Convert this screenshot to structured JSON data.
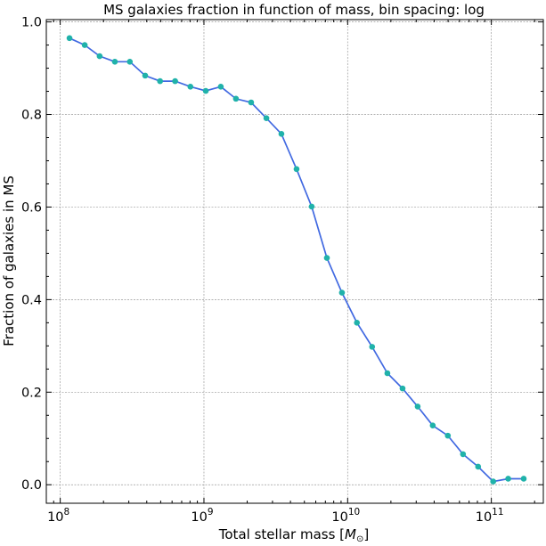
{
  "chart_data": {
    "type": "line",
    "title": "MS galaxies fraction in function of mass, bin spacing: log",
    "xlabel": "Total stellar mass [",
    "xlabel_math": "M",
    "xlabel_sub": "⊙",
    "xlabel_close": "]",
    "ylabel": "Fraction of galaxies in MS",
    "xscale": "log",
    "xlim": [
      80000000.0,
      230000000000.0
    ],
    "ylim": [
      -0.04,
      1.005
    ],
    "grid": true,
    "xticks": [
      {
        "value": 100000000.0,
        "base": "10",
        "exp": "8"
      },
      {
        "value": 1000000000.0,
        "base": "10",
        "exp": "9"
      },
      {
        "value": 10000000000.0,
        "base": "10",
        "exp": "10"
      },
      {
        "value": 100000000000.0,
        "base": "10",
        "exp": "11"
      }
    ],
    "yticks": [
      {
        "value": 0.0,
        "label": "0.0"
      },
      {
        "value": 0.2,
        "label": "0.2"
      },
      {
        "value": 0.4,
        "label": "0.4"
      },
      {
        "value": 0.6,
        "label": "0.6"
      },
      {
        "value": 0.8,
        "label": "0.8"
      },
      {
        "value": 1.0,
        "label": "1.0"
      }
    ],
    "series": [
      {
        "line_color": "#4169e1",
        "marker_color": "#20b2aa",
        "x": [
          116000000.0,
          148000000.0,
          188000000.0,
          240000000.0,
          305000000.0,
          390000000.0,
          495000000.0,
          630000000.0,
          805000000.0,
          1030000000.0,
          1310000000.0,
          1670000000.0,
          2130000000.0,
          2720000000.0,
          3460000000.0,
          4410000000.0,
          5620000000.0,
          7170000000.0,
          9130000000.0,
          11600000000.0,
          14800000000.0,
          18900000000.0,
          24100000000.0,
          30700000000.0,
          39100000000.0,
          49800000000.0,
          63500000000.0,
          80900000000.0,
          103000000000.0,
          131000000000.0,
          168000000000.0
        ],
        "y": [
          0.965,
          0.95,
          0.926,
          0.914,
          0.914,
          0.884,
          0.872,
          0.872,
          0.86,
          0.851,
          0.86,
          0.834,
          0.826,
          0.792,
          0.758,
          0.682,
          0.601,
          0.49,
          0.415,
          0.35,
          0.298,
          0.241,
          0.208,
          0.169,
          0.128,
          0.106,
          0.066,
          0.039,
          0.007,
          0.013,
          0.013
        ]
      }
    ]
  }
}
